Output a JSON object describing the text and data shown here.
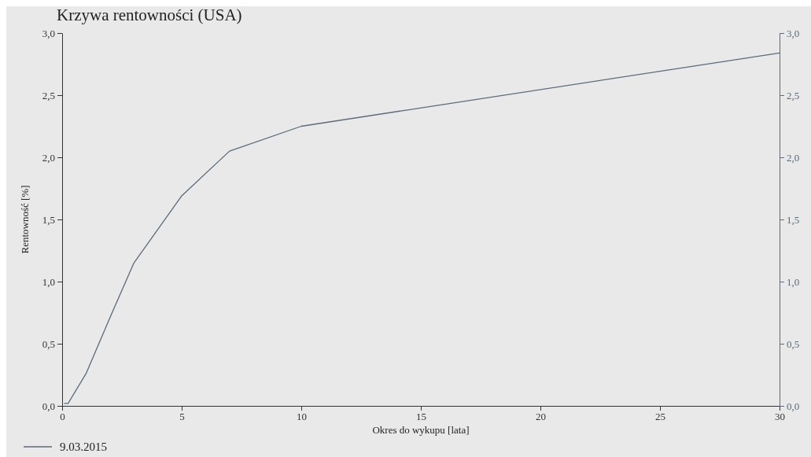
{
  "chart_data": {
    "type": "line",
    "title": "Krzywa rentowności (USA)",
    "xlabel": "Okres do wykupu [lata]",
    "ylabel": "Rentowność [%]",
    "x": [
      0.08,
      0.25,
      1,
      2,
      3,
      5,
      7,
      10,
      30
    ],
    "series": [
      {
        "name": "9.03.2015",
        "color": "#5b6b7b",
        "values": [
          0.02,
          0.02,
          0.26,
          0.71,
          1.15,
          1.69,
          2.05,
          2.25,
          2.84
        ]
      }
    ],
    "xlim": [
      0,
      30
    ],
    "xticks": [
      0,
      5,
      10,
      15,
      20,
      25,
      30
    ],
    "ylim": [
      0,
      3
    ],
    "yticks": [
      {
        "value": 0,
        "label": "0,0"
      },
      {
        "value": 0.5,
        "label": "0,5"
      },
      {
        "value": 1,
        "label": "1,0"
      },
      {
        "value": 1.5,
        "label": "1,5"
      },
      {
        "value": 2,
        "label": "2,0"
      },
      {
        "value": 2.5,
        "label": "2,5"
      },
      {
        "value": 3,
        "label": "3,0"
      }
    ],
    "y2lim": [
      0,
      3
    ],
    "y2ticks": [
      {
        "value": 0,
        "label": "0,0"
      },
      {
        "value": 0.5,
        "label": "0,5"
      },
      {
        "value": 1,
        "label": "1,0"
      },
      {
        "value": 1.5,
        "label": "1,5"
      },
      {
        "value": 2,
        "label": "2,0"
      },
      {
        "value": 2.5,
        "label": "2,5"
      },
      {
        "value": 3,
        "label": "3,0"
      }
    ],
    "grid": false,
    "legend": "bottom left",
    "marker": "none",
    "line_style": "solid"
  }
}
